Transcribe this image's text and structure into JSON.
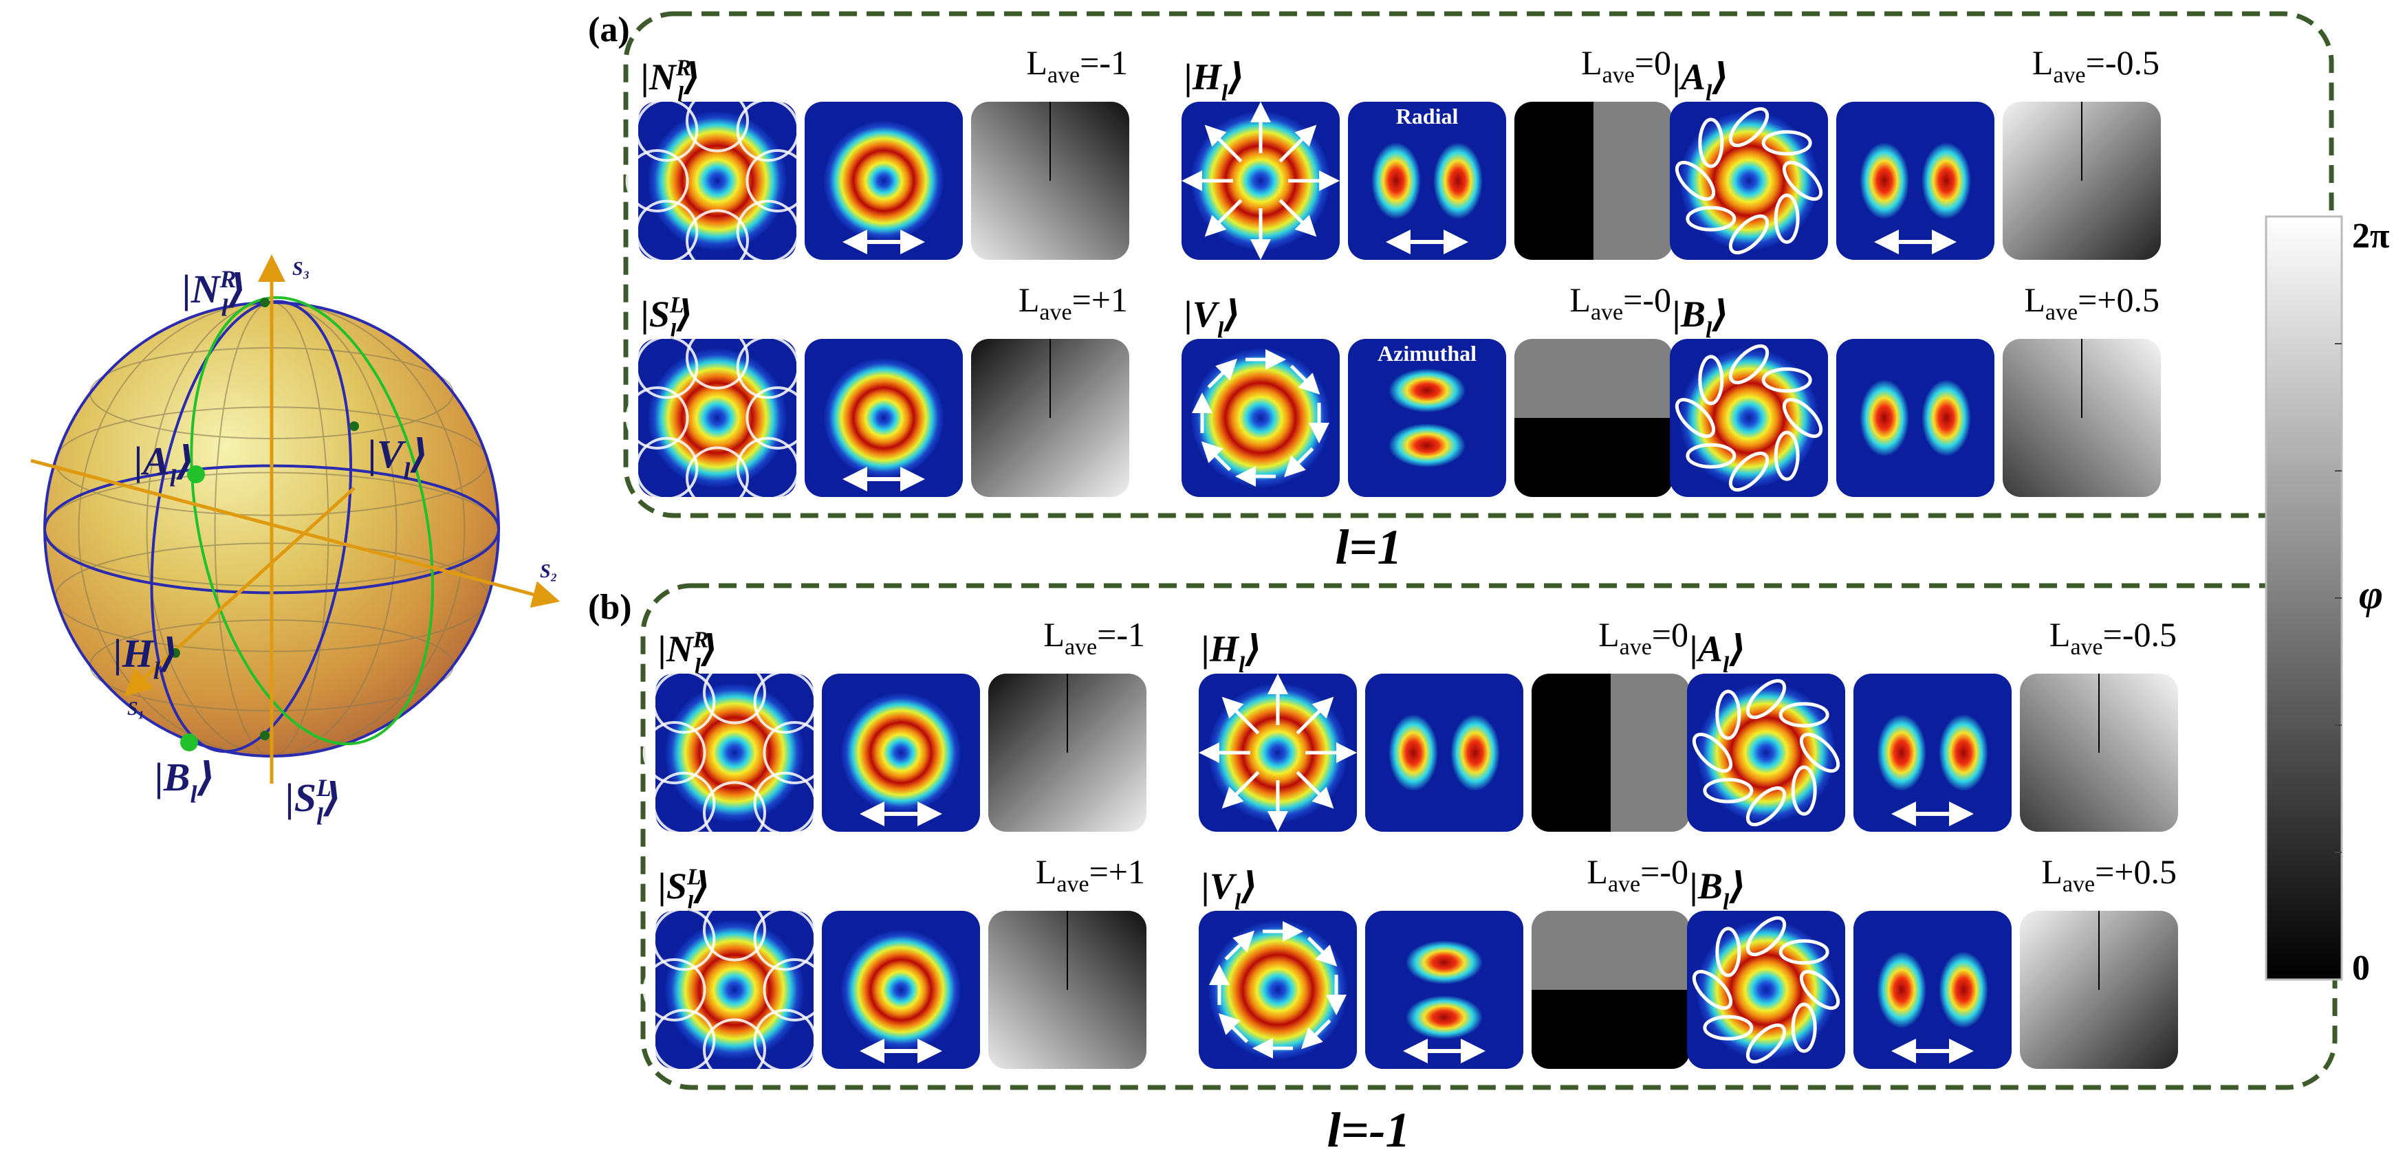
{
  "panel_a": {
    "label": "(a)",
    "caption": "l=1",
    "rows": [
      [
        {
          "state": "N",
          "sup": "R",
          "lave": "-1",
          "pol": "circ-ccw",
          "intensity": "ring",
          "phase": "spiral-a",
          "arrow": true
        },
        {
          "state": "H",
          "sup": "",
          "lave": "0",
          "pol": "radial",
          "intensity": "lobes-h",
          "phase": "split-v",
          "arrow": true,
          "tag": "Radial"
        },
        {
          "state": "A",
          "sup": "",
          "lave": "-0.5",
          "pol": "ellipse",
          "intensity": "lobes-h",
          "phase": "spiral-b",
          "arrow": true
        }
      ],
      [
        {
          "state": "S",
          "sup": "L",
          "lave": "+1",
          "pol": "circ-cw",
          "intensity": "ring",
          "phase": "spiral-c",
          "arrow": true
        },
        {
          "state": "V",
          "sup": "",
          "lave": "-0",
          "pol": "azimuthal",
          "intensity": "lobes-v",
          "phase": "split-h",
          "arrow": false,
          "tag": "Azimuthal"
        },
        {
          "state": "B",
          "sup": "",
          "lave": "+0.5",
          "pol": "ellipse",
          "intensity": "lobes-h",
          "phase": "spiral-d",
          "arrow": false
        }
      ]
    ]
  },
  "panel_b": {
    "label": "(b)",
    "caption": "l=-1",
    "rows": [
      [
        {
          "state": "N",
          "sup": "R",
          "lave": "-1",
          "pol": "circ-ccw",
          "intensity": "ring",
          "phase": "spiral-c",
          "arrow": true
        },
        {
          "state": "H",
          "sup": "",
          "lave": "0",
          "pol": "radial",
          "intensity": "lobes-h",
          "phase": "split-v",
          "arrow": false
        },
        {
          "state": "A",
          "sup": "",
          "lave": "-0.5",
          "pol": "ellipse",
          "intensity": "lobes-h",
          "phase": "spiral-d",
          "arrow": true
        }
      ],
      [
        {
          "state": "S",
          "sup": "L",
          "lave": "+1",
          "pol": "circ-cw",
          "intensity": "ring",
          "phase": "spiral-a",
          "arrow": true
        },
        {
          "state": "V",
          "sup": "",
          "lave": "-0",
          "pol": "azimuthal",
          "intensity": "lobes-v",
          "phase": "split-h",
          "arrow": true
        },
        {
          "state": "B",
          "sup": "",
          "lave": "+0.5",
          "pol": "ellipse",
          "intensity": "lobes-h",
          "phase": "spiral-b",
          "arrow": true
        }
      ]
    ]
  },
  "lave_prefix": "L",
  "lave_sub": "ave",
  "sphere": {
    "axis_s1": "S₁",
    "axis_s2": "S₂",
    "axis_s3": "S₃",
    "points": [
      {
        "state": "N",
        "sup": "R",
        "sub_caps": true
      },
      {
        "state": "A",
        "sup": ""
      },
      {
        "state": "V",
        "sup": ""
      },
      {
        "state": "H",
        "sup": ""
      },
      {
        "state": "B",
        "sup": ""
      },
      {
        "state": "S",
        "sup": "L",
        "sub_caps": true
      }
    ]
  },
  "colorbar": {
    "top": "2π",
    "bottom": "0",
    "label": "φ"
  },
  "colors": {
    "panel_border": "#3d5a2a",
    "beam_bg": "#0a1e9e",
    "ket": "#1a1a6e",
    "sphere_line": "#2b2bb0",
    "sphere_green": "#22c02a",
    "axis": "#e09a10"
  }
}
